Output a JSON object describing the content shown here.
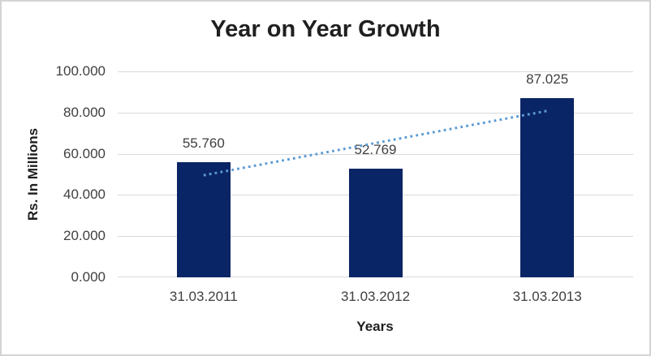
{
  "window": {
    "background_color": "#FFFFFF",
    "frame_border_color": "#D4D4D4"
  },
  "chart_data": {
    "type": "bar",
    "title": "Year on Year Growth",
    "xlabel": "Years",
    "ylabel": "Rs. In Millions",
    "categories": [
      "31.03.2011",
      "31.03.2012",
      "31.03.2013"
    ],
    "series": [
      {
        "name": "Year on Year Growth",
        "values": [
          55.76,
          52.769,
          87.025
        ],
        "value_labels": [
          "55.760",
          "52.769",
          "87.025"
        ],
        "color": "#0A2565"
      }
    ],
    "ylim": [
      0,
      100
    ],
    "yticks": [
      0,
      20,
      40,
      60,
      80,
      100
    ],
    "ytick_labels": [
      "0.000",
      "20.000",
      "40.000",
      "60.000",
      "80.000",
      "100.000"
    ],
    "grid": true,
    "gridline_color": "#D9D9D9",
    "legend": "none",
    "axis_text_color": "#404040",
    "title_color": "#1F1F1F",
    "trendline": {
      "type": "linear",
      "style": "dotted",
      "color": "#5B9BD5",
      "span": "first-bar-center-to-last-bar-center"
    }
  }
}
